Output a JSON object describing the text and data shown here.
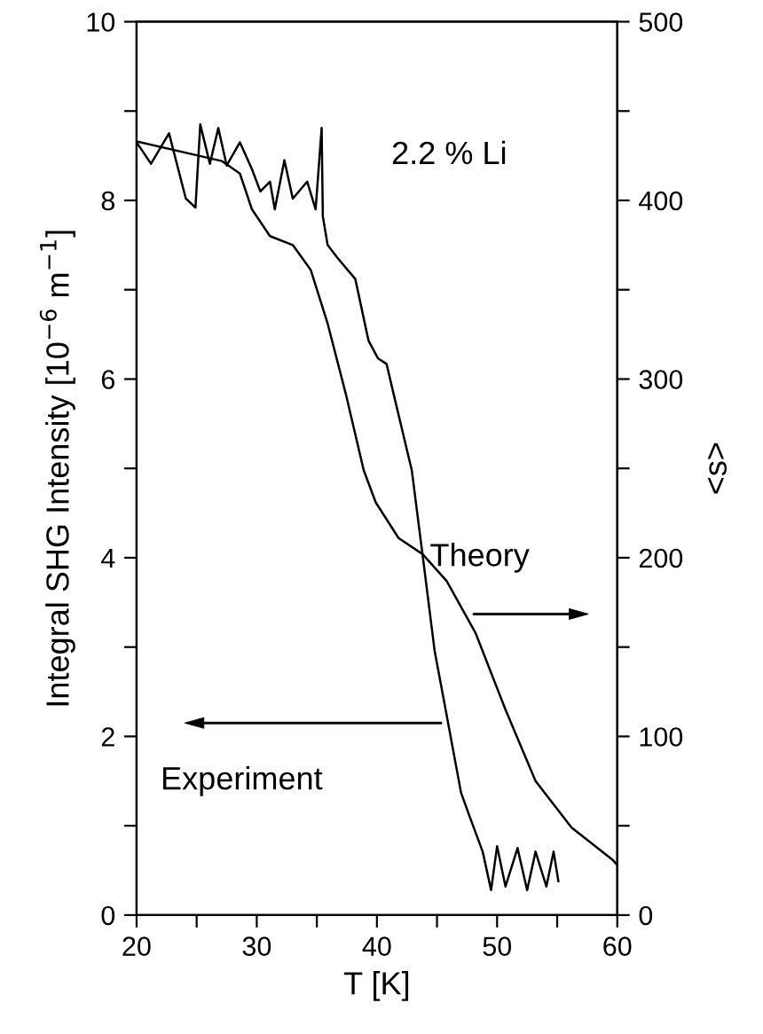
{
  "chart_data": {
    "type": "line",
    "xlabel": "T [K]",
    "ylabel": "Integral SHG Intensity [10$^{−6}$ m$^{−1}$]",
    "y2label": "<s>",
    "annotations": [
      "2.2 % Li",
      "Experiment",
      "Theory"
    ],
    "series": [
      {
        "color": "#000000",
        "x": [
          20,
          21.2,
          22.7,
          24.1,
          24.9,
          25.3,
          26.1,
          26.8,
          27.5,
          28.6,
          29.6,
          30.3,
          31.1,
          31.5,
          32.3,
          33.0,
          34.2,
          34.9,
          35.4,
          35.5,
          35.9,
          36.7,
          38.2,
          39.3,
          40.1,
          40.8,
          41.5,
          42.9,
          43.8,
          44.8,
          45.8,
          47.0,
          47.7,
          48.8,
          49.5,
          50.0,
          50.7,
          51.7,
          52.5,
          53.2,
          54.1,
          54.7,
          55.1
        ],
        "values": [
          8.65,
          8.41,
          8.75,
          8.02,
          7.92,
          8.85,
          8.41,
          8.81,
          8.39,
          8.65,
          8.35,
          8.1,
          8.21,
          7.9,
          8.45,
          8.02,
          8.21,
          7.9,
          8.81,
          7.82,
          7.5,
          7.36,
          7.12,
          6.43,
          6.23,
          6.17,
          5.77,
          4.98,
          4.03,
          2.96,
          2.24,
          1.37,
          1.11,
          0.71,
          0.28,
          0.77,
          0.32,
          0.75,
          0.28,
          0.71,
          0.32,
          0.71,
          0.38
        ]
      },
      {
        "color": "#000000",
        "axis": "y2",
        "x": [
          20,
          27.1,
          28.6,
          29.6,
          31.1,
          33,
          34.5,
          35.9,
          37.4,
          38.9,
          39.9,
          41.8,
          43.8,
          45.8,
          48.2,
          50.7,
          53.2,
          56.2,
          59.6,
          60
        ],
        "values": [
          433,
          422,
          415,
          395,
          380,
          375,
          361,
          331,
          292,
          249,
          231,
          211,
          202,
          187,
          158,
          115,
          75,
          49,
          31,
          28
        ]
      }
    ],
    "xlim": [
      20,
      60
    ],
    "xticks": [
      20,
      {
        "value": 25,
        "label": null
      },
      30,
      {
        "value": 35,
        "label": null
      },
      40,
      {
        "value": 45,
        "label": null
      },
      50,
      {
        "value": 55,
        "label": null
      },
      60
    ],
    "ylim": [
      0,
      10
    ],
    "yticks": [
      0,
      {
        "value": 1,
        "label": null
      },
      2,
      {
        "value": 3,
        "label": null
      },
      4,
      {
        "value": 5,
        "label": null
      },
      6,
      {
        "value": 7,
        "label": null
      },
      8,
      {
        "value": 9,
        "label": null
      },
      10
    ],
    "y2lim": [
      0,
      500
    ],
    "y2ticks": [
      0,
      {
        "value": 50,
        "label": null
      },
      100,
      {
        "value": 150,
        "label": null
      },
      200,
      {
        "value": 250,
        "label": null
      },
      300,
      {
        "value": 350,
        "label": null
      },
      400,
      {
        "value": 450,
        "label": null
      },
      500
    ],
    "grid": false,
    "marker": "none",
    "line_style": "solid"
  }
}
